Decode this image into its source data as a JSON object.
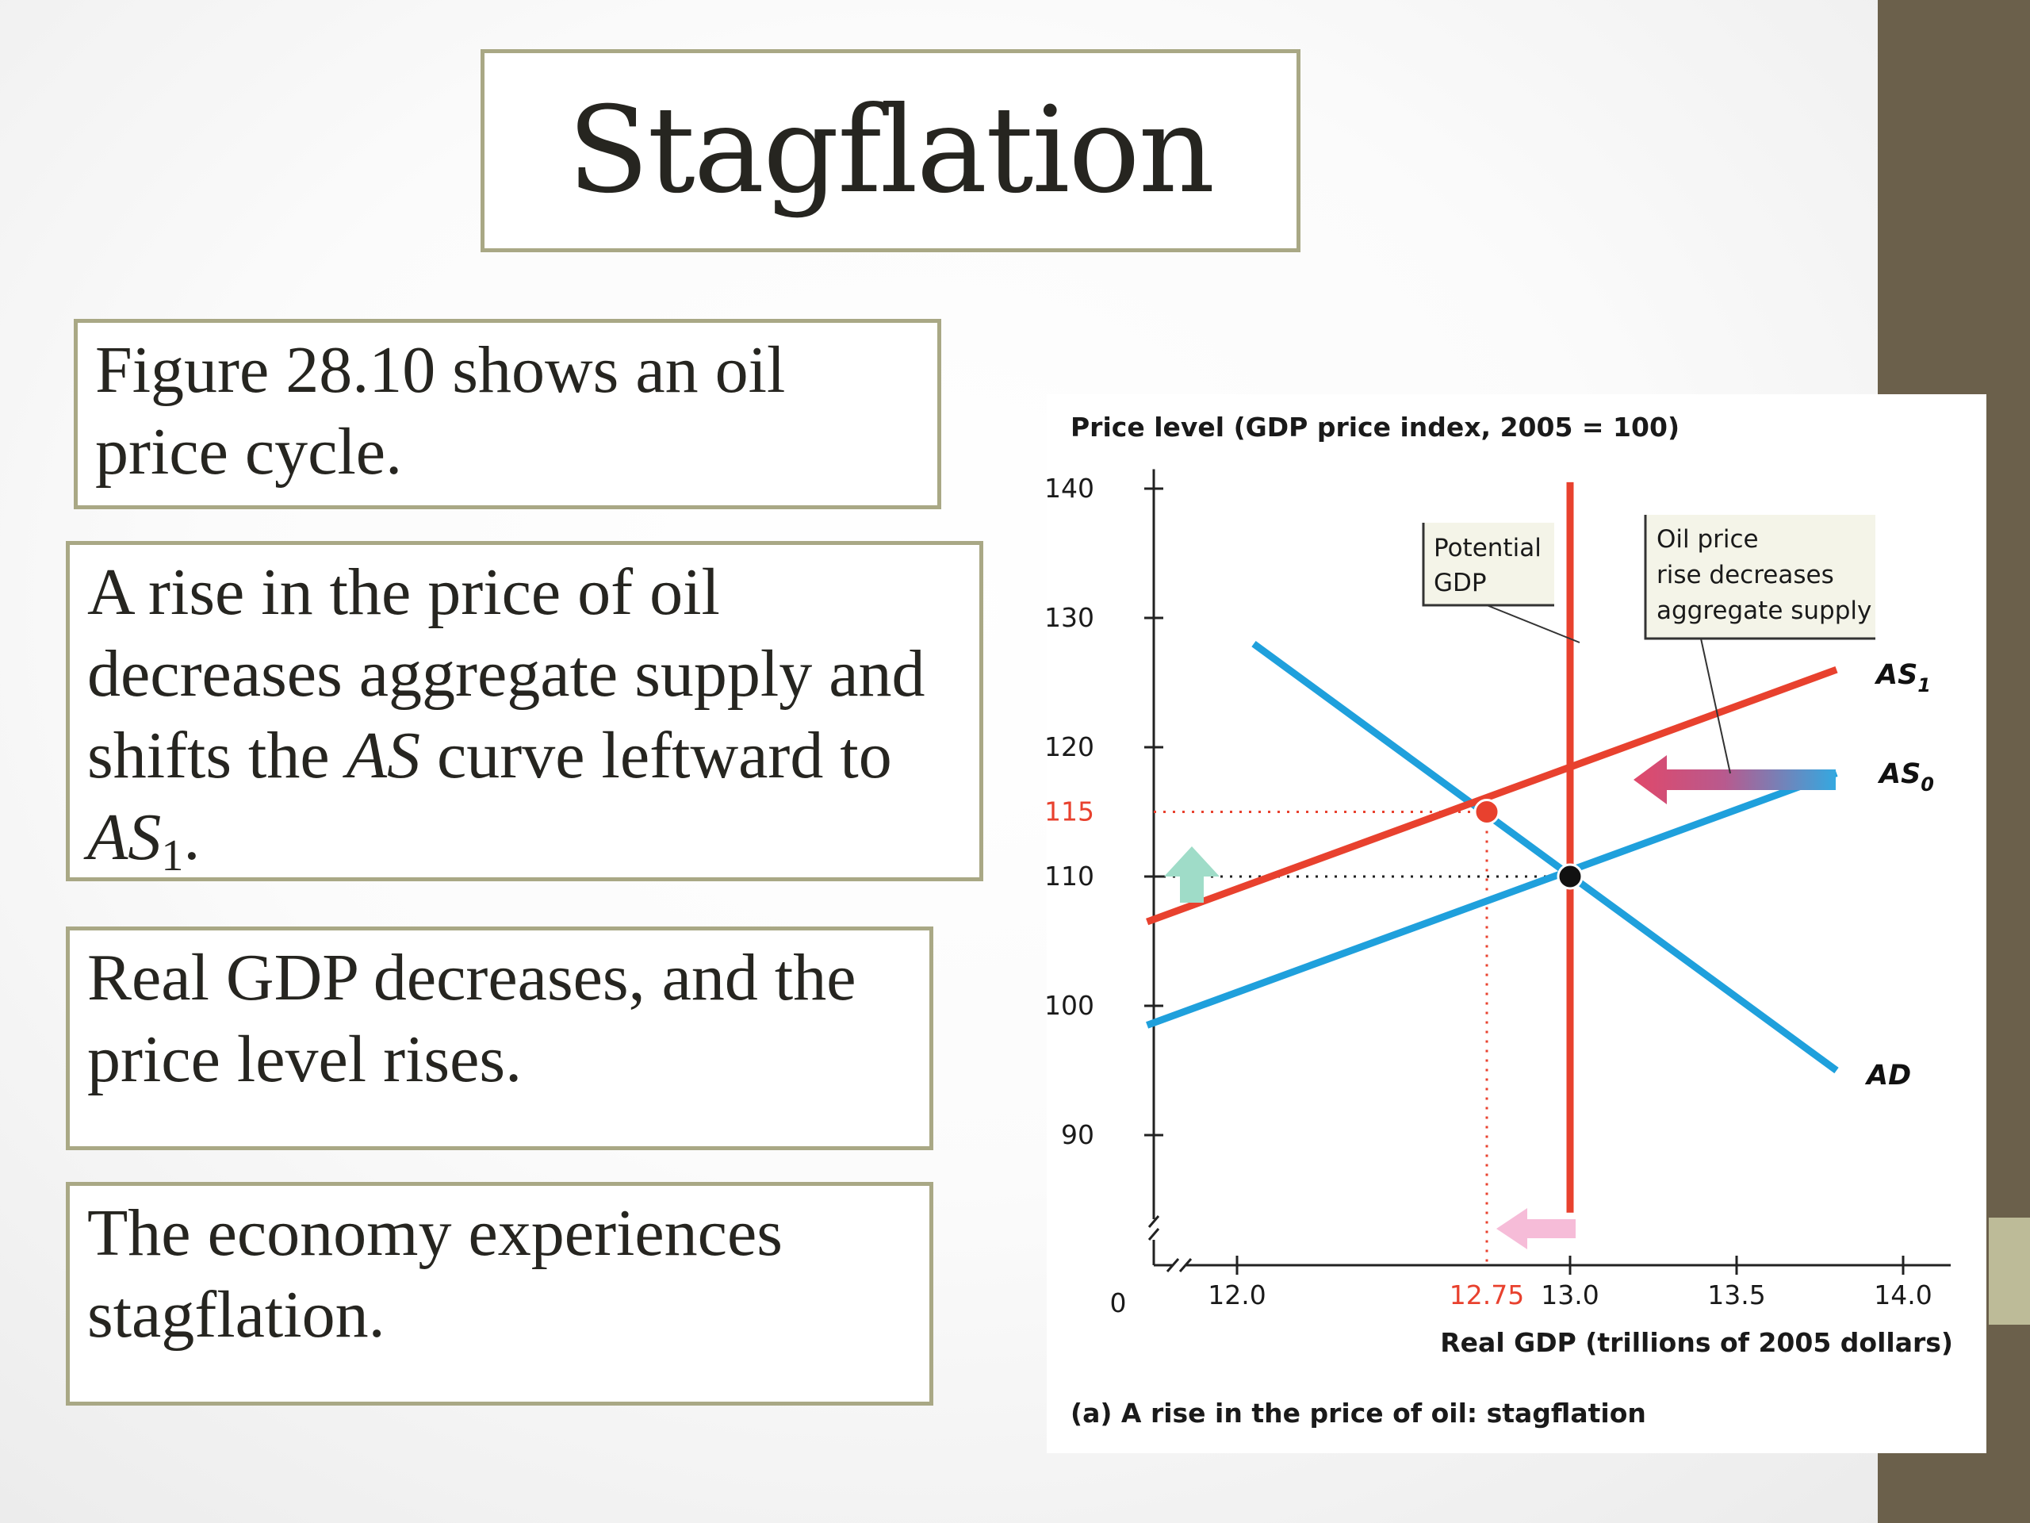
{
  "slide": {
    "title": "Stagflation",
    "box1": "Figure 28.10 shows an oil price cycle.",
    "box2_text": "A rise in the price of oil decreases aggregate supply and shifts the ",
    "box2_as": "AS",
    "box2_mid": " curve leftward to ",
    "box2_as1": "AS",
    "box2_as1_sub": "1",
    "box2_end": ".",
    "box3": "Real GDP decreases, and the price level rises.",
    "box4": "The economy experiences stagflation."
  },
  "colors": {
    "background": "#f6f6f6",
    "side_bar": "#6b604b",
    "box_border": "#a9a885",
    "as0_ad": "#1fa0dc",
    "as1_potential": "#e8412e",
    "callout_bg": "#f4f4e8",
    "arrow_up": "#9fdcc8",
    "arrow_left": "#f6bcd8"
  },
  "chart_data": {
    "type": "line",
    "ylabel": "Price level (GDP price index, 2005 = 100)",
    "xlabel": "Real GDP (trillions of 2005 dollars)",
    "caption": "(a) A rise in the price of oil: stagflation",
    "origin_label": "0",
    "y_ticks": [
      140,
      130,
      120,
      115,
      110,
      100,
      90
    ],
    "y_tick_labels": [
      "140",
      "130",
      "120",
      "115",
      "110",
      "100",
      "90"
    ],
    "x_ticks": [
      12.0,
      12.75,
      13.0,
      13.5,
      14.0
    ],
    "x_tick_labels": [
      "12.0",
      "12.75",
      "13.0",
      "13.5",
      "14.0"
    ],
    "highlight_ticks": [
      "115",
      "12.75"
    ],
    "ylim": [
      83.5,
      140
    ],
    "xlim": [
      11.7,
      14.05
    ],
    "axis_break": true,
    "grid": false,
    "series": [
      {
        "name": "AD",
        "label": "AD",
        "color": "#1fa0dc",
        "x": [
          12.05,
          13.8
        ],
        "y": [
          128,
          95
        ]
      },
      {
        "name": "AS0",
        "label": "AS",
        "sub": "0",
        "color": "#1fa0dc",
        "x": [
          11.73,
          13.8
        ],
        "y": [
          98.5,
          118
        ]
      },
      {
        "name": "AS1",
        "label": "AS",
        "sub": "1",
        "color": "#e8412e",
        "x": [
          11.73,
          13.8
        ],
        "y": [
          106.5,
          126
        ]
      },
      {
        "name": "Potential GDP",
        "color": "#e8412e",
        "x": [
          13.0,
          13.0
        ],
        "y": [
          84,
          140.5
        ]
      }
    ],
    "points": [
      {
        "label": "initial equilibrium",
        "x": 13.0,
        "y": 110,
        "color": "#111111"
      },
      {
        "label": "new equilibrium",
        "x": 12.75,
        "y": 115,
        "color": "#e8412e"
      }
    ],
    "annotations": [
      {
        "text": [
          "Potential",
          "GDP"
        ]
      },
      {
        "text": [
          "Oil price",
          "rise decreases",
          "aggregate supply"
        ]
      }
    ]
  }
}
